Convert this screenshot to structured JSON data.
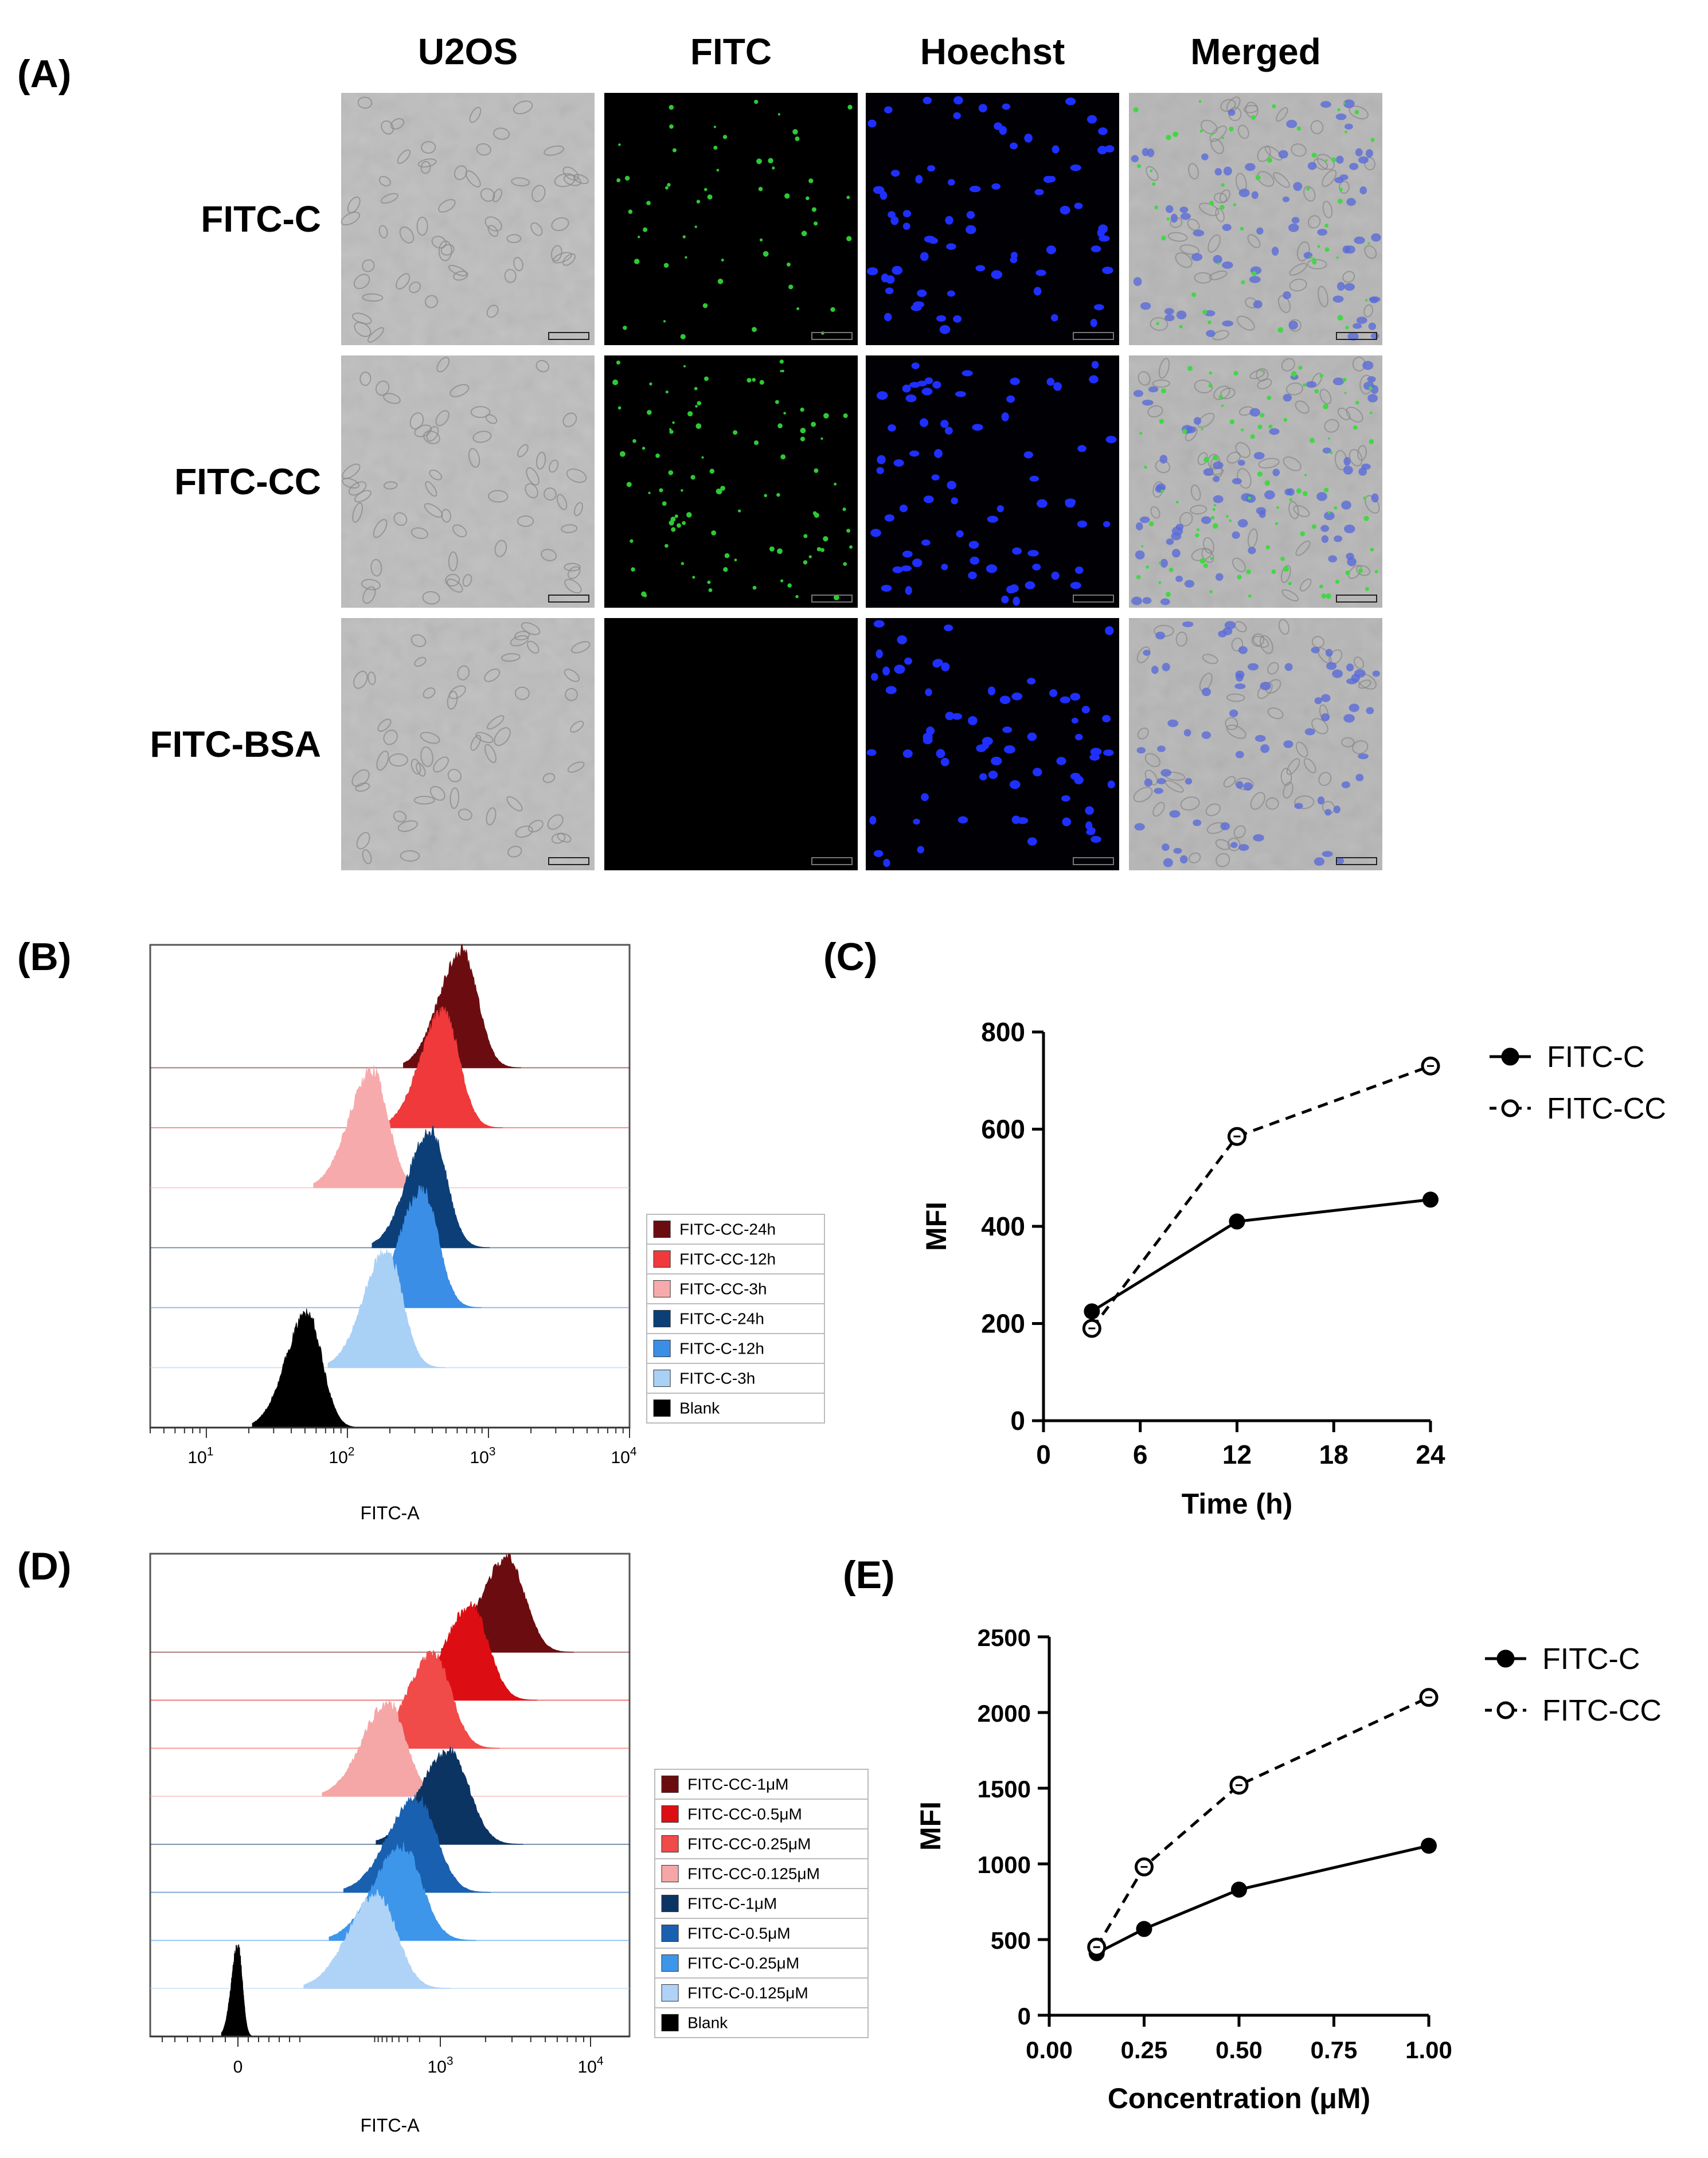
{
  "panel_a": {
    "label": "(A)",
    "columns": [
      "U2OS",
      "FITC",
      "Hoechst",
      "Merged"
    ],
    "rows": [
      "FITC-C",
      "FITC-CC",
      "FITC-BSA"
    ]
  },
  "panel_b": {
    "label": "(B)"
  },
  "panel_c": {
    "label": "(C)"
  },
  "panel_d": {
    "label": "(D)"
  },
  "panel_e": {
    "label": "(E)"
  },
  "colors": {
    "cc_24h": "#6b0d10",
    "cc_12h": "#f0393b",
    "cc_3h": "#f7aaac",
    "c_24h": "#0c3f78",
    "c_12h": "#3a8ee6",
    "c_3h": "#a9d0f5",
    "cc_1": "#6b0d10",
    "cc_05": "#dd0e13",
    "cc_025": "#f04a49",
    "cc_0125": "#f5a6a6",
    "c_1": "#0c3463",
    "c_05": "#1960b0",
    "c_025": "#3d96ea",
    "c_0125": "#aed3f6",
    "blank": "#000000"
  },
  "chart_data": [
    {
      "type": "histogram",
      "panel": "B",
      "xlabel": "FITC-A",
      "x_scale": "log",
      "xlim": [
        4,
        10000
      ],
      "x_ticks": [
        "10^1",
        "10^2",
        "10^3",
        "10^4"
      ],
      "legend_position": "right",
      "series": [
        {
          "name": "FITC-CC-24h",
          "peak": 650,
          "color_key": "cc_24h"
        },
        {
          "name": "FITC-CC-12h",
          "peak": 480,
          "color_key": "cc_12h"
        },
        {
          "name": "FITC-CC-3h",
          "peak": 150,
          "color_key": "cc_3h"
        },
        {
          "name": "FITC-C-24h",
          "peak": 390,
          "color_key": "c_24h"
        },
        {
          "name": "FITC-C-12h",
          "peak": 340,
          "color_key": "c_12h"
        },
        {
          "name": "FITC-C-3h",
          "peak": 190,
          "color_key": "c_3h"
        },
        {
          "name": "Blank",
          "peak": 52,
          "color_key": "blank"
        }
      ]
    },
    {
      "type": "line",
      "panel": "C",
      "xlabel": "Time (h)",
      "ylabel": "MFI",
      "xlim": [
        0,
        24
      ],
      "ylim": [
        0,
        800
      ],
      "x_ticks": [
        0,
        6,
        12,
        18,
        24
      ],
      "y_ticks": [
        0,
        200,
        400,
        600,
        800
      ],
      "legend_position": "top-right",
      "series": [
        {
          "name": "FITC-C",
          "style": "solid",
          "x": [
            3,
            12,
            24
          ],
          "y": [
            225,
            410,
            455
          ]
        },
        {
          "name": "FITC-CC",
          "style": "dashed",
          "x": [
            3,
            12,
            24
          ],
          "y": [
            190,
            585,
            730
          ]
        }
      ]
    },
    {
      "type": "histogram",
      "panel": "D",
      "xlabel": "FITC-A",
      "x_scale": "biexponential",
      "x_ticks": [
        "0",
        "10^3",
        "10^4"
      ],
      "legend_position": "right",
      "series": [
        {
          "name": "FITC-CC-1μM",
          "peak": 2800,
          "color_key": "cc_1"
        },
        {
          "name": "FITC-CC-0.5μM",
          "peak": 1600,
          "color_key": "cc_05"
        },
        {
          "name": "FITC-CC-0.25μM",
          "peak": 900,
          "color_key": "cc_025"
        },
        {
          "name": "FITC-CC-0.125μM",
          "peak": 450,
          "color_key": "cc_0125"
        },
        {
          "name": "FITC-C-1μM",
          "peak": 1150,
          "color_key": "c_1"
        },
        {
          "name": "FITC-C-0.5μM",
          "peak": 700,
          "color_key": "c_05"
        },
        {
          "name": "FITC-C-0.25μM",
          "peak": 560,
          "color_key": "c_025"
        },
        {
          "name": "FITC-C-0.125μM",
          "peak": 380,
          "color_key": "c_0125"
        },
        {
          "name": "Blank",
          "peak": 0,
          "color_key": "blank"
        }
      ]
    },
    {
      "type": "line",
      "panel": "E",
      "xlabel": "Concentration (μM)",
      "ylabel": "MFI",
      "xlim": [
        0,
        1
      ],
      "ylim": [
        0,
        2500
      ],
      "x_ticks": [
        "0.00",
        "0.25",
        "0.50",
        "0.75",
        "1.00"
      ],
      "y_ticks": [
        0,
        500,
        1000,
        1500,
        2000,
        2500
      ],
      "legend_position": "top-right",
      "series": [
        {
          "name": "FITC-C",
          "style": "solid",
          "x": [
            0.125,
            0.25,
            0.5,
            1.0
          ],
          "y": [
            410,
            570,
            830,
            1120
          ]
        },
        {
          "name": "FITC-CC",
          "style": "dashed",
          "x": [
            0.125,
            0.25,
            0.5,
            1.0
          ],
          "y": [
            450,
            980,
            1520,
            2100
          ]
        }
      ]
    }
  ]
}
